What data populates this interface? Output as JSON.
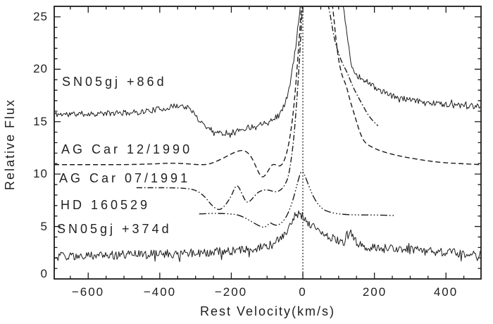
{
  "figure": {
    "background": "#ffffff",
    "ink": "#1b1b1b"
  },
  "chart_data": {
    "type": "line",
    "title": "",
    "xlabel": "Rest Velocity(km/s)",
    "ylabel": "Relative Flux",
    "xlim": [
      -695,
      498
    ],
    "ylim": [
      0,
      26
    ],
    "grid": false,
    "legend_position": "none",
    "x_major_ticks": [
      -600,
      -400,
      -200,
      0,
      200,
      400
    ],
    "x_tick_labels": [
      "−600",
      "−400",
      "−200",
      "0",
      "200",
      "400"
    ],
    "x_minor_step": 50,
    "y_major_ticks": [
      0,
      5,
      10,
      15,
      20,
      25
    ],
    "y_tick_labels": [
      "0",
      "5",
      "10",
      "15",
      "20",
      "25"
    ],
    "y_minor_step": 1,
    "zero_velocity_line": {
      "x": 0,
      "style": "dotted"
    },
    "series": [
      {
        "label": "SN05gj +86d",
        "line_style": "solid",
        "noise_amplitude": 0.27,
        "noise_seed": 11,
        "points": [
          [
            -695,
            15.7
          ],
          [
            -600,
            15.75
          ],
          [
            -520,
            15.8
          ],
          [
            -460,
            15.9
          ],
          [
            -420,
            16.1
          ],
          [
            -380,
            16.3
          ],
          [
            -350,
            16.55
          ],
          [
            -325,
            16.4
          ],
          [
            -305,
            15.8
          ],
          [
            -285,
            15.0
          ],
          [
            -265,
            14.4
          ],
          [
            -245,
            14.05
          ],
          [
            -225,
            13.9
          ],
          [
            -205,
            13.95
          ],
          [
            -185,
            14.1
          ],
          [
            -165,
            14.35
          ],
          [
            -145,
            14.5
          ],
          [
            -125,
            14.7
          ],
          [
            -105,
            15.0
          ],
          [
            -85,
            15.2
          ],
          [
            -68,
            15.6
          ],
          [
            -55,
            16.3
          ],
          [
            -45,
            17.3
          ],
          [
            -36,
            18.6
          ],
          [
            -28,
            20.2
          ],
          [
            -20,
            22.2
          ],
          [
            -12,
            24.5
          ],
          [
            -5,
            26.6
          ],
          [
            10,
            28.8
          ],
          [
            50,
            29.2
          ],
          [
            85,
            28.6
          ],
          [
            100,
            27.6
          ],
          [
            108,
            26.8
          ],
          [
            116,
            25.4
          ],
          [
            122,
            23.8
          ],
          [
            128,
            22.0
          ],
          [
            134,
            20.6
          ],
          [
            142,
            19.9
          ],
          [
            152,
            19.4
          ],
          [
            165,
            19.1
          ],
          [
            180,
            18.8
          ],
          [
            200,
            18.3
          ],
          [
            225,
            17.8
          ],
          [
            255,
            17.4
          ],
          [
            290,
            17.1
          ],
          [
            330,
            16.9
          ],
          [
            387,
            16.7
          ],
          [
            440,
            16.5
          ],
          [
            498,
            16.3
          ]
        ]
      },
      {
        "label": "AG Car 12/1990",
        "line_style": "dashed",
        "noise_amplitude": 0,
        "noise_seed": 0,
        "points": [
          [
            -695,
            10.9
          ],
          [
            -600,
            10.9
          ],
          [
            -500,
            10.9
          ],
          [
            -430,
            10.95
          ],
          [
            -370,
            11.05
          ],
          [
            -330,
            11.0
          ],
          [
            -295,
            10.9
          ],
          [
            -268,
            10.9
          ],
          [
            -245,
            11.15
          ],
          [
            -215,
            11.65
          ],
          [
            -190,
            12.1
          ],
          [
            -170,
            12.3
          ],
          [
            -155,
            12.1
          ],
          [
            -143,
            11.6
          ],
          [
            -131,
            10.7
          ],
          [
            -121,
            9.95
          ],
          [
            -114,
            9.7
          ],
          [
            -107,
            9.8
          ],
          [
            -97,
            10.3
          ],
          [
            -88,
            10.85
          ],
          [
            -80,
            10.95
          ],
          [
            -72,
            10.8
          ],
          [
            -63,
            10.75
          ],
          [
            -54,
            11.1
          ],
          [
            -45,
            12.0
          ],
          [
            -37,
            13.3
          ],
          [
            -29,
            15.2
          ],
          [
            -22,
            17.6
          ],
          [
            -15,
            20.6
          ],
          [
            -8,
            24.0
          ],
          [
            -2,
            27.0
          ],
          [
            20,
            30.0
          ],
          [
            60,
            30.0
          ],
          [
            78,
            27.2
          ],
          [
            85,
            25.5
          ],
          [
            92,
            23.0
          ],
          [
            100,
            20.8
          ],
          [
            110,
            19.3
          ],
          [
            121,
            18.5
          ],
          [
            132,
            17.0
          ],
          [
            143,
            15.8
          ],
          [
            150,
            15.0
          ],
          [
            160,
            13.9
          ],
          [
            173,
            12.95
          ],
          [
            200,
            12.45
          ],
          [
            222,
            12.15
          ],
          [
            260,
            11.8
          ],
          [
            289,
            11.6
          ],
          [
            340,
            11.3
          ],
          [
            387,
            11.1
          ],
          [
            440,
            11.0
          ],
          [
            498,
            10.9
          ]
        ]
      },
      {
        "label": "AG Car 07/1991",
        "line_style": "dash-dot",
        "noise_amplitude": 0,
        "noise_seed": 0,
        "points": [
          [
            -465,
            8.7
          ],
          [
            -420,
            8.7
          ],
          [
            -370,
            8.7
          ],
          [
            -330,
            8.65
          ],
          [
            -300,
            8.5
          ],
          [
            -275,
            7.9
          ],
          [
            -255,
            7.0
          ],
          [
            -238,
            6.6
          ],
          [
            -228,
            6.65
          ],
          [
            -215,
            7.1
          ],
          [
            -200,
            7.9
          ],
          [
            -190,
            8.75
          ],
          [
            -183,
            8.95
          ],
          [
            -175,
            8.5
          ],
          [
            -166,
            7.8
          ],
          [
            -158,
            7.3
          ],
          [
            -150,
            7.35
          ],
          [
            -140,
            7.7
          ],
          [
            -128,
            8.2
          ],
          [
            -115,
            8.45
          ],
          [
            -100,
            8.5
          ],
          [
            -88,
            8.4
          ],
          [
            -78,
            8.3
          ],
          [
            -68,
            8.35
          ],
          [
            -58,
            8.6
          ],
          [
            -48,
            9.1
          ],
          [
            -40,
            9.8
          ],
          [
            -32,
            11.5
          ],
          [
            -25,
            13.5
          ],
          [
            -18,
            16.5
          ],
          [
            -12,
            19.5
          ],
          [
            -6,
            23.0
          ],
          [
            0,
            27.0
          ],
          [
            25,
            31.0
          ],
          [
            50,
            29.5
          ],
          [
            62,
            27.5
          ],
          [
            75,
            25.5
          ],
          [
            85,
            23.4
          ],
          [
            95,
            22.0
          ],
          [
            108,
            20.7
          ],
          [
            124,
            19.7
          ],
          [
            140,
            18.3
          ],
          [
            157,
            17.2
          ],
          [
            170,
            16.4
          ],
          [
            181,
            15.7
          ],
          [
            195,
            15.1
          ],
          [
            210,
            14.6
          ]
        ]
      },
      {
        "label": "HD 160529",
        "line_style": "dash-dot-dot-dot",
        "noise_amplitude": 0,
        "noise_seed": 0,
        "points": [
          [
            -290,
            6.2
          ],
          [
            -260,
            6.25
          ],
          [
            -230,
            6.25
          ],
          [
            -200,
            6.2
          ],
          [
            -180,
            6.1
          ],
          [
            -160,
            5.8
          ],
          [
            -145,
            5.5
          ],
          [
            -130,
            5.2
          ],
          [
            -118,
            5.0
          ],
          [
            -108,
            4.9
          ],
          [
            -99,
            5.1
          ],
          [
            -92,
            5.4
          ],
          [
            -84,
            5.2
          ],
          [
            -74,
            5.1
          ],
          [
            -65,
            5.2
          ],
          [
            -55,
            5.5
          ],
          [
            -45,
            6.0
          ],
          [
            -36,
            6.7
          ],
          [
            -28,
            7.5
          ],
          [
            -20,
            8.5
          ],
          [
            -13,
            9.4
          ],
          [
            -7,
            10.1
          ],
          [
            -2,
            10.3
          ],
          [
            4,
            10.0
          ],
          [
            12,
            9.3
          ],
          [
            22,
            8.4
          ],
          [
            33,
            7.6
          ],
          [
            45,
            7.0
          ],
          [
            58,
            6.6
          ],
          [
            72,
            6.4
          ],
          [
            90,
            6.25
          ],
          [
            115,
            6.15
          ],
          [
            150,
            6.1
          ],
          [
            200,
            6.1
          ],
          [
            256,
            6.05
          ]
        ]
      },
      {
        "label": "SN05gj +374d",
        "line_style": "solid",
        "noise_amplitude": 0.42,
        "noise_seed": 29,
        "points": [
          [
            -695,
            2.15
          ],
          [
            -600,
            2.2
          ],
          [
            -500,
            2.3
          ],
          [
            -400,
            2.35
          ],
          [
            -320,
            2.45
          ],
          [
            -250,
            2.55
          ],
          [
            -200,
            2.65
          ],
          [
            -160,
            2.8
          ],
          [
            -130,
            2.9
          ],
          [
            -105,
            3.05
          ],
          [
            -85,
            3.3
          ],
          [
            -65,
            3.8
          ],
          [
            -50,
            4.4
          ],
          [
            -38,
            5.0
          ],
          [
            -25,
            5.7
          ],
          [
            -14,
            6.25
          ],
          [
            -5,
            6.1
          ],
          [
            5,
            5.8
          ],
          [
            18,
            5.3
          ],
          [
            33,
            5.0
          ],
          [
            48,
            4.6
          ],
          [
            65,
            4.3
          ],
          [
            82,
            3.9
          ],
          [
            100,
            3.6
          ],
          [
            115,
            3.5
          ],
          [
            124,
            4.1
          ],
          [
            132,
            4.4
          ],
          [
            140,
            3.9
          ],
          [
            152,
            3.4
          ],
          [
            170,
            3.1
          ],
          [
            195,
            2.95
          ],
          [
            230,
            2.9
          ],
          [
            270,
            2.8
          ],
          [
            320,
            2.7
          ],
          [
            380,
            2.55
          ],
          [
            440,
            2.45
          ],
          [
            498,
            2.4
          ]
        ]
      }
    ]
  }
}
